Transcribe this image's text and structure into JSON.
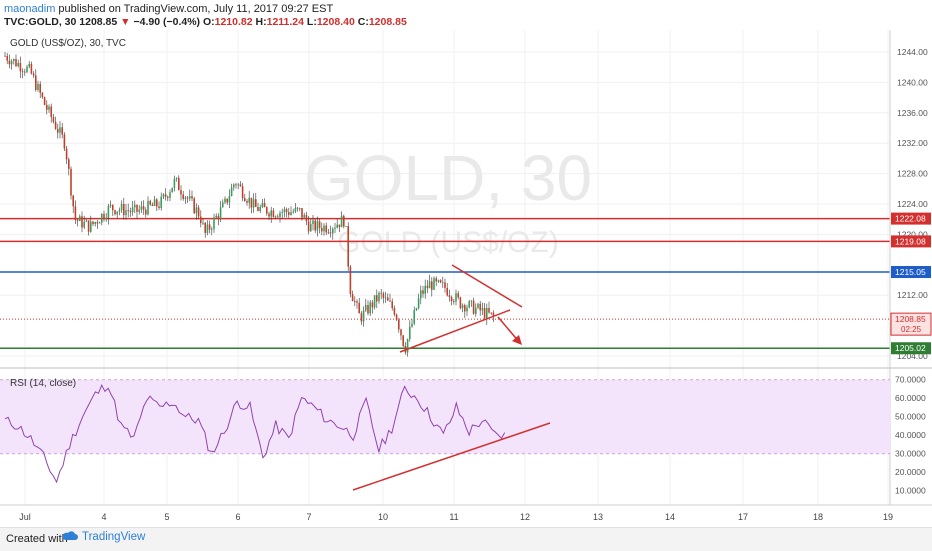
{
  "header": {
    "author": "maonadim",
    "published": "published on TradingView.com, July 11, 2017 09:27 EST",
    "symbol": "TVC:GOLD, 30",
    "last": "1208.85",
    "change_arrow": "▼",
    "change": "−4.90 (−0.4%)",
    "ohlc": {
      "o_label": "O:",
      "o": "1210.82",
      "h_label": "H:",
      "h": "1211.24",
      "l_label": "L:",
      "l": "1208.40",
      "c_label": "C:",
      "c": "1208.85"
    }
  },
  "pane": {
    "legend": "GOLD (US$/OZ), 30, TVC",
    "watermark_symbol": "GOLD, 30",
    "watermark_name": "GOLD (US$/OZ)",
    "price_ticks": [
      "1244.00",
      "1240.00",
      "1236.00",
      "1232.00",
      "1228.00",
      "1224.00",
      "1220.00",
      "1212.00",
      "1204.00"
    ],
    "price_tick_values": [
      1244,
      1240,
      1236,
      1232,
      1228,
      1224,
      1220,
      1212,
      1204
    ],
    "levels": [
      {
        "value": 1222.08,
        "label": "1222.08",
        "color": "#d32f2f"
      },
      {
        "value": 1219.08,
        "label": "1219.08",
        "color": "#d32f2f"
      },
      {
        "value": 1215.05,
        "label": "1215.05",
        "color": "#1e5cc8"
      },
      {
        "value": 1205.02,
        "label": "1205.02",
        "color": "#2e7d32"
      }
    ],
    "last_price": {
      "value": 1208.85,
      "label": "1208.85",
      "countdown": "02:25",
      "color": "#d32f2f"
    }
  },
  "rsi": {
    "legend": "RSI (14, close)",
    "ticks": [
      "70.0000",
      "60.0000",
      "50.0000",
      "40.0000",
      "30.0000",
      "20.0000",
      "10.0000"
    ],
    "tick_values": [
      70,
      60,
      50,
      40,
      30,
      20,
      10
    ],
    "band": [
      30,
      70
    ],
    "line_color": "#8e44ad",
    "band_color": "#f4e4fb"
  },
  "x_axis": {
    "labels": [
      "Jul",
      "4",
      "5",
      "6",
      "7",
      "10",
      "11",
      "12",
      "13",
      "14",
      "17",
      "18",
      "19"
    ]
  },
  "chart_data": {
    "type": "candlestick",
    "symbol": "TVC:GOLD",
    "interval": "30",
    "ylim": [
      1202,
      1246
    ],
    "x_labels": [
      "Jul",
      "4",
      "5",
      "6",
      "7",
      "10",
      "11",
      "12",
      "13",
      "14",
      "17",
      "18",
      "19"
    ],
    "price_series": {
      "name": "GOLD (US$/OZ)",
      "x": [
        "Jul 3",
        "Jul 3",
        "Jul 3",
        "Jul 3",
        "Jul 4",
        "Jul 4",
        "Jul 4",
        "Jul 5",
        "Jul 5",
        "Jul 5",
        "Jul 6",
        "Jul 6",
        "Jul 6",
        "Jul 7",
        "Jul 7",
        "Jul 7",
        "Jul 10",
        "Jul 10",
        "Jul 10",
        "Jul 11",
        "Jul 11",
        "Jul 11"
      ],
      "close": [
        1243.5,
        1241.0,
        1237.0,
        1230.0,
        1221.0,
        1223.0,
        1224.5,
        1223.5,
        1226.0,
        1227.5,
        1226.0,
        1223.5,
        1222.5,
        1223.0,
        1221.5,
        1222.0,
        1210.0,
        1213.0,
        1206.0,
        1214.0,
        1211.5,
        1208.85
      ]
    },
    "horizontal_lines": [
      1222.08,
      1219.08,
      1215.05,
      1205.02
    ],
    "last": 1208.85,
    "rsi": {
      "name": "RSI (14, close)",
      "ylim": [
        5,
        72
      ],
      "values": [
        48,
        45,
        38,
        28,
        15,
        35,
        50,
        62,
        68,
        45,
        38,
        60,
        55,
        58,
        50,
        48,
        30,
        42,
        58,
        55,
        28,
        45,
        38,
        60,
        55,
        48,
        45,
        40,
        58,
        32,
        44,
        65,
        60,
        50,
        40,
        55,
        42,
        48,
        40
      ]
    }
  }
}
